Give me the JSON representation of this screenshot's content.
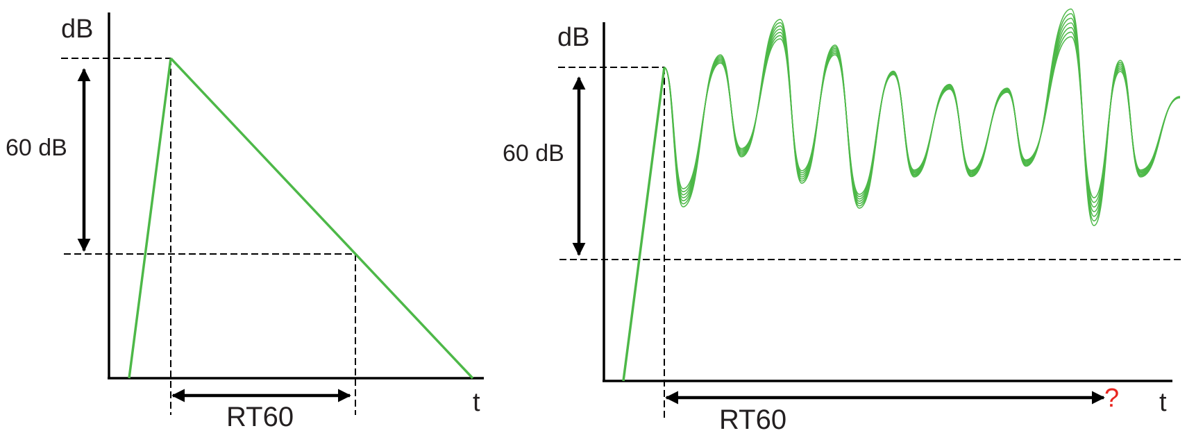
{
  "left_diagram": {
    "y_axis_label": "dB",
    "x_axis_label": "t",
    "level_span_label": "60 dB",
    "decay_time_label": "RT60"
  },
  "right_diagram": {
    "y_axis_label": "dB",
    "x_axis_label": "t",
    "level_span_label": "60 dB",
    "decay_time_label": "RT60",
    "unknown_marker": "?"
  },
  "colors": {
    "curve": "#4db848",
    "axes": "#000000",
    "text": "#231f20",
    "question_mark": "#e8251f"
  }
}
